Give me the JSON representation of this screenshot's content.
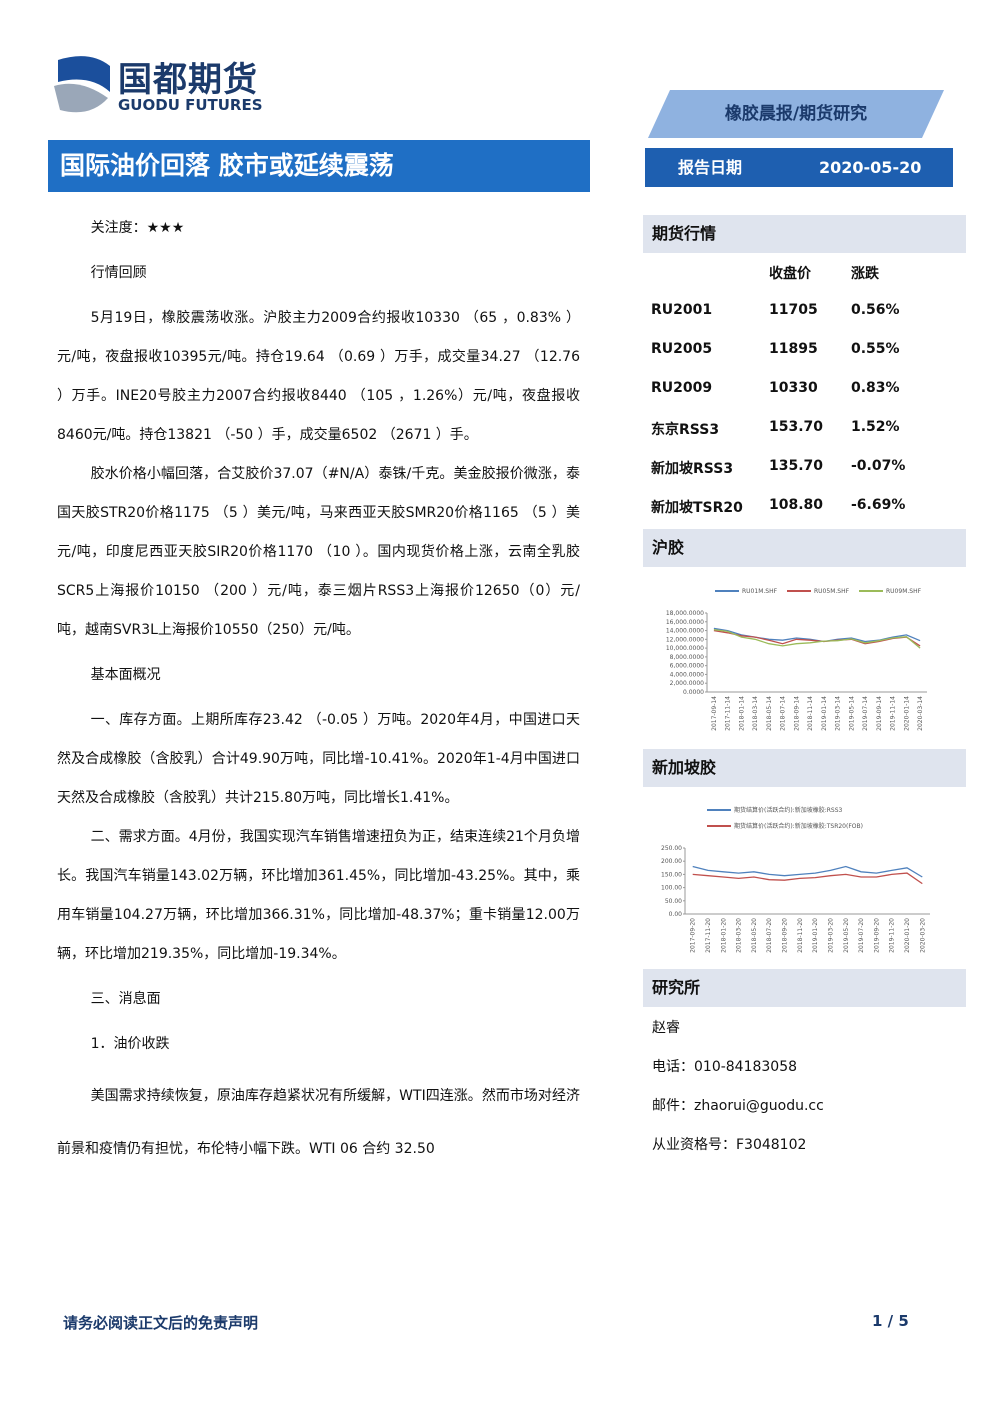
{
  "header": {
    "logo_cn": "国都期货",
    "logo_en": "GUODU FUTURES",
    "category": "橡胶晨报/期货研究",
    "title": "国际油价回落 胶市或延续震荡",
    "date_label": "报告日期",
    "date": "2020-05-20"
  },
  "body": {
    "paragraphs": [
      "关注度：★★★",
      "行情回顾",
      "5月19日，橡胶震荡收涨。沪胶主力2009合约报收10330 （65 ，0.83% ）元/吨，夜盘报收10395元/吨。持仓19.64 （0.69 ）万手，成交量34.27 （12.76 ）万手。INE20号胶主力2007合约报收8440 （105 ，1.26%）元/吨，夜盘报收8460元/吨。持仓13821 （-50 ）手，成交量6502 （2671 ）手。",
      "胶水价格小幅回落，合艾胶价37.07（#N/A）泰铢/千克。美金胶报价微涨，泰国天胶STR20价格1175 （5 ）美元/吨，马来西亚天胶SMR20价格1165 （5 ）美元/吨，印度尼西亚天胶SIR20价格1170 （10 ）。国内现货价格上涨，云南全乳胶SCR5上海报价10150 （200 ）元/吨，泰三烟片RSS3上海报价12650（0）元/吨，越南SVR3L上海报价10550（250）元/吨。",
      "基本面概况",
      "一、库存方面。上期所库存23.42 （-0.05 ）万吨。2020年4月，中国进口天然及合成橡胶（含胶乳）合计49.90万吨，同比增-10.41%。2020年1-4月中国进口天然及合成橡胶（含胶乳）共计215.80万吨，同比增长1.41%。",
      "二、需求方面。4月份，我国实现汽车销售增速扭负为正，结束连续21个月负增长。我国汽车销量143.02万辆，环比增加361.45%，同比增加-43.25%。其中，乘用车销量104.27万辆，环比增加366.31%，同比增加-48.37%；重卡销量12.00万辆，环比增加219.35%，同比增加-19.34%。",
      "三、消息面",
      "1．油价收跌",
      "美国需求持续恢复，原油库存趋紧状况有所缓解，WTI四连涨。然而市场对经济前景和疫情仍有担忧，布伦特小幅下跌。WTI 06 合约 32.50"
    ]
  },
  "market": {
    "title": "期货行情",
    "columns": [
      "收盘价",
      "涨跌"
    ],
    "rows": [
      [
        "RU2001",
        "11705",
        "0.56%"
      ],
      [
        "RU2005",
        "11895",
        "0.55%"
      ],
      [
        "RU2009",
        "10330",
        "0.83%"
      ],
      [
        "东京RSS3",
        "153.70",
        "1.52%"
      ],
      [
        "新加坡RSS3",
        "135.70",
        "-0.07%"
      ],
      [
        "新加坡TSR20",
        "108.80",
        "-6.69%"
      ]
    ]
  },
  "chart_data": [
    {
      "type": "line",
      "title": "沪胶",
      "categories": [
        "2017-09-14",
        "2017-11-14",
        "2018-01-14",
        "2018-03-14",
        "2018-05-14",
        "2018-07-14",
        "2018-09-14",
        "2018-11-14",
        "2019-01-14",
        "2019-03-14",
        "2019-05-14",
        "2019-07-14",
        "2019-09-14",
        "2019-11-14",
        "2020-01-14",
        "2020-03-14"
      ],
      "series": [
        {
          "name": "RU01M.SHF",
          "color": "#4f81bd",
          "values": [
            14500,
            14000,
            13000,
            12500,
            12000,
            11800,
            12300,
            12000,
            11500,
            12000,
            12300,
            11500,
            11800,
            12500,
            13000,
            11700
          ]
        },
        {
          "name": "RU05M.SHF",
          "color": "#c0504d",
          "values": [
            14000,
            13500,
            12800,
            12500,
            11800,
            11000,
            12000,
            11800,
            11500,
            11800,
            12000,
            11000,
            11500,
            12200,
            12500,
            10500
          ]
        },
        {
          "name": "RU09M.SHF",
          "color": "#9bbb59",
          "values": [
            14200,
            13800,
            12500,
            12000,
            11000,
            10500,
            11000,
            11200,
            11600,
            11700,
            12100,
            11200,
            11700,
            12300,
            12600,
            10000
          ]
        }
      ],
      "ylim": [
        0,
        18000
      ],
      "yticks": [
        {
          "value": 0,
          "label": "0.0000"
        },
        {
          "value": 2000,
          "label": "2,000.0000"
        },
        {
          "value": 4000,
          "label": "4,000.0000"
        },
        {
          "value": 6000,
          "label": "6,000.0000"
        },
        {
          "value": 8000,
          "label": "8,000.0000"
        },
        {
          "value": 10000,
          "label": "10,000.0000"
        },
        {
          "value": 12000,
          "label": "12,000.0000"
        },
        {
          "value": 14000,
          "label": "14,000.0000"
        },
        {
          "value": 16000,
          "label": "16,000.0000"
        },
        {
          "value": 18000,
          "label": "18,000.0000"
        }
      ],
      "legend": "top"
    },
    {
      "type": "line",
      "title": "新加坡胶",
      "categories": [
        "2017-09-20",
        "2017-11-20",
        "2018-01-20",
        "2018-03-20",
        "2018-05-20",
        "2018-07-20",
        "2018-09-20",
        "2018-11-20",
        "2019-01-20",
        "2019-03-20",
        "2019-05-20",
        "2019-07-20",
        "2019-09-20",
        "2019-11-20",
        "2020-01-20",
        "2020-03-20"
      ],
      "series": [
        {
          "name": "期货结算价(活跃合约):新加坡橡胶:RSS3",
          "color": "#4f81bd",
          "values": [
            180,
            165,
            160,
            155,
            160,
            150,
            145,
            150,
            155,
            165,
            180,
            160,
            155,
            165,
            175,
            140
          ]
        },
        {
          "name": "期货结算价(活跃合约):新加坡橡胶:TSR20(FOB)",
          "color": "#c0504d",
          "values": [
            150,
            145,
            140,
            135,
            140,
            130,
            128,
            135,
            138,
            145,
            150,
            140,
            140,
            150,
            155,
            115
          ]
        }
      ],
      "ylim": [
        0,
        250
      ],
      "yticks": [
        {
          "value": 0,
          "label": "0.00"
        },
        {
          "value": 50,
          "label": "50.00"
        },
        {
          "value": 100,
          "label": "100.00"
        },
        {
          "value": 150,
          "label": "150.00"
        },
        {
          "value": 200,
          "label": "200.00"
        },
        {
          "value": 250,
          "label": "250.00"
        }
      ],
      "legend": "top"
    }
  ],
  "research": {
    "title": "研究所",
    "lines": [
      "赵睿",
      "电话：010-84183058",
      "邮件：zhaorui@guodu.cc",
      "从业资格号：F3048102"
    ]
  },
  "footer": {
    "disclaimer": "请务必阅读正文后的免责声明",
    "page": "1 / 5"
  }
}
